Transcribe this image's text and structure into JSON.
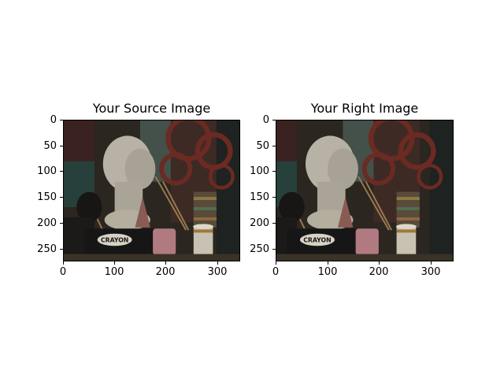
{
  "panels": [
    {
      "title": "Your Source Image",
      "x_ticks": [
        "0",
        "100",
        "200",
        "300"
      ],
      "y_ticks": [
        "0",
        "50",
        "100",
        "150",
        "200",
        "250"
      ],
      "image_label": "CRAYON"
    },
    {
      "title": "Your Right Image",
      "x_ticks": [
        "0",
        "100",
        "200",
        "300"
      ],
      "y_ticks": [
        "0",
        "50",
        "100",
        "150",
        "200",
        "250"
      ],
      "image_label": "CRAYON"
    }
  ],
  "image_size": {
    "width": 345,
    "height": 275
  }
}
